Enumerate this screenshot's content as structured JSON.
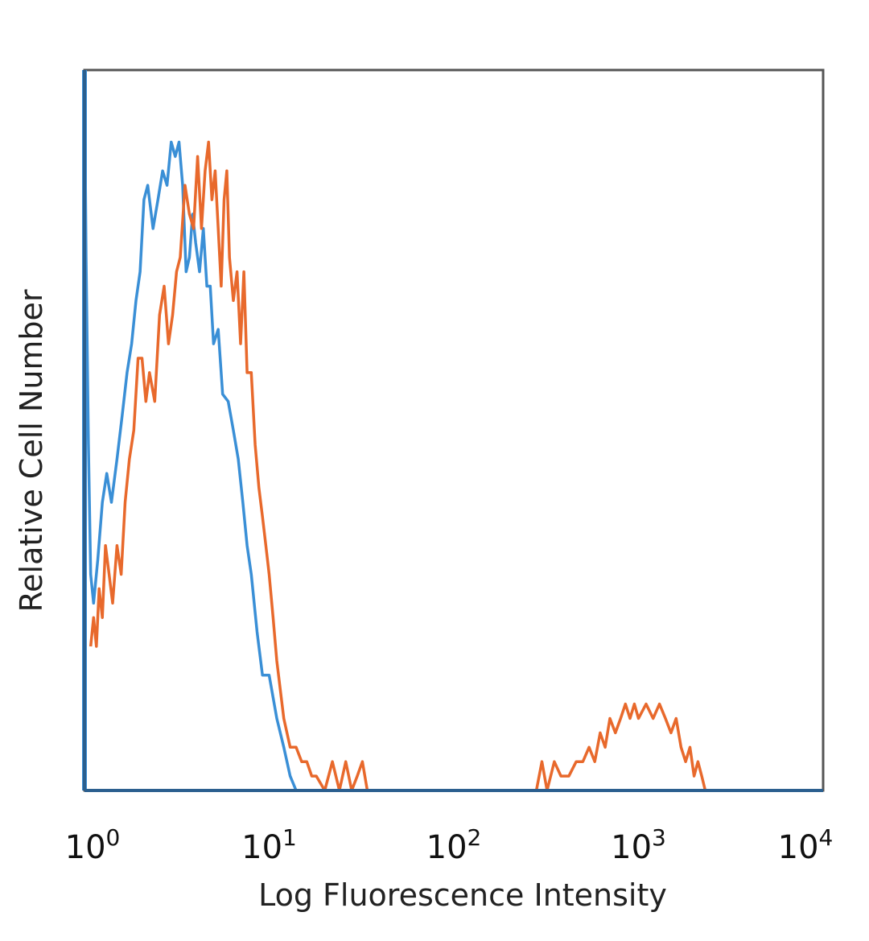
{
  "chart_data": {
    "type": "line",
    "title": "",
    "xlabel": "Log Fluorescence Intensity",
    "ylabel": "Relative Cell Number",
    "x_scale": "log",
    "xlim": [
      1,
      10000
    ],
    "ylim": [
      0,
      100
    ],
    "grid": false,
    "legend": "none",
    "x_ticks": [
      {
        "value": 1,
        "base": "10",
        "exp": "0"
      },
      {
        "value": 10,
        "base": "10",
        "exp": "1"
      },
      {
        "value": 100,
        "base": "10",
        "exp": "2"
      },
      {
        "value": 1000,
        "base": "10",
        "exp": "3"
      },
      {
        "value": 10000,
        "base": "10",
        "exp": "4"
      }
    ],
    "series": [
      {
        "color": "#3a8fd6",
        "x": [
          1.0,
          1.02,
          1.05,
          1.08,
          1.12,
          1.18,
          1.25,
          1.32,
          1.4,
          1.5,
          1.6,
          1.7,
          1.8,
          1.9,
          2.0,
          2.1,
          2.2,
          2.35,
          2.5,
          2.65,
          2.8,
          2.95,
          3.1,
          3.25,
          3.4,
          3.55,
          3.7,
          3.85,
          4.0,
          4.2,
          4.4,
          4.6,
          4.8,
          5.0,
          5.3,
          5.6,
          6.0,
          6.4,
          6.8,
          7.2,
          7.6,
          8.0,
          8.6,
          9.2,
          10.0,
          11.0,
          12.0,
          13.0,
          14.0
        ],
        "y": [
          100,
          74,
          48,
          30,
          26,
          32,
          40,
          44,
          40,
          46,
          52,
          58,
          62,
          68,
          72,
          82,
          84,
          78,
          82,
          86,
          84,
          90,
          88,
          90,
          84,
          72,
          74,
          80,
          76,
          72,
          78,
          70,
          70,
          62,
          64,
          55,
          54,
          50,
          46,
          40,
          34,
          30,
          22,
          16,
          16,
          10,
          6,
          2,
          0
        ]
      },
      {
        "color": "#e8692c",
        "x": [
          1.08,
          1.12,
          1.16,
          1.2,
          1.25,
          1.3,
          1.36,
          1.42,
          1.5,
          1.58,
          1.66,
          1.75,
          1.85,
          1.95,
          2.05,
          2.15,
          2.25,
          2.4,
          2.55,
          2.7,
          2.85,
          3.0,
          3.15,
          3.3,
          3.5,
          3.7,
          3.9,
          4.1,
          4.3,
          4.5,
          4.7,
          4.9,
          5.1,
          5.3,
          5.5,
          5.7,
          5.9,
          6.1,
          6.4,
          6.7,
          7.0,
          7.3,
          7.6,
          8.0,
          8.4,
          8.8,
          9.2,
          9.6,
          10.0,
          10.5,
          11.0,
          12.0,
          13.0,
          14.0,
          15.0,
          16.0,
          17.0,
          18.0,
          20.0,
          22.0,
          24.0,
          26.0,
          28.0,
          30.0,
          32.0,
          34.0,
          280,
          300,
          320,
          350,
          380,
          420,
          460,
          500,
          540,
          580,
          620,
          660,
          700,
          750,
          800,
          850,
          900,
          950,
          1000,
          1100,
          1200,
          1300,
          1400,
          1500,
          1600,
          1700,
          1800,
          1900,
          2000,
          2100,
          2200,
          2300,
          2400
        ],
        "y": [
          20,
          24,
          20,
          28,
          24,
          34,
          30,
          26,
          34,
          30,
          40,
          46,
          50,
          60,
          60,
          54,
          58,
          54,
          66,
          70,
          62,
          66,
          72,
          74,
          84,
          80,
          78,
          88,
          78,
          86,
          90,
          82,
          86,
          78,
          70,
          82,
          86,
          74,
          68,
          72,
          62,
          72,
          58,
          58,
          48,
          42,
          38,
          34,
          30,
          24,
          18,
          10,
          6,
          6,
          4,
          4,
          2,
          2,
          0,
          4,
          0,
          4,
          0,
          2,
          4,
          0,
          0,
          4,
          0,
          4,
          2,
          2,
          4,
          4,
          6,
          4,
          8,
          6,
          10,
          8,
          10,
          12,
          10,
          12,
          10,
          12,
          10,
          12,
          10,
          8,
          10,
          6,
          4,
          6,
          2,
          4,
          2,
          0,
          0
        ]
      },
      {
        "color": "#3a8fd6",
        "x": [
          1.0,
          1.0
        ],
        "y": [
          0,
          100
        ]
      }
    ]
  }
}
